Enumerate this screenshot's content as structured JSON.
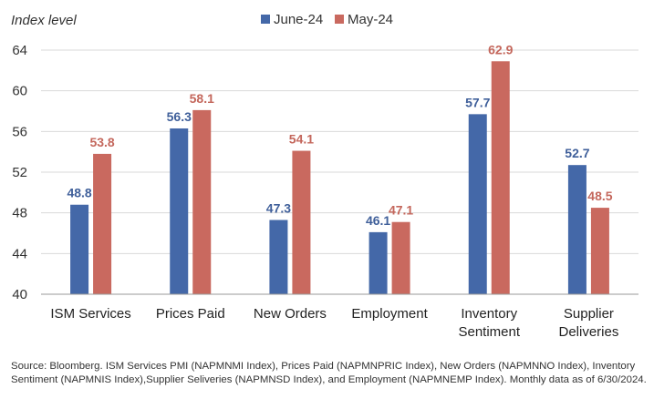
{
  "chart_data": {
    "type": "bar",
    "ylabel": "Index level",
    "ylim": [
      40,
      64
    ],
    "yticks": [
      40,
      44,
      48,
      52,
      56,
      60,
      64
    ],
    "categories": [
      [
        "ISM Services"
      ],
      [
        "Prices Paid"
      ],
      [
        "New Orders"
      ],
      [
        "Employment"
      ],
      [
        "Inventory",
        "Sentiment"
      ],
      [
        "Supplier",
        "Deliveries"
      ]
    ],
    "series": [
      {
        "name": "June-24",
        "color": "#4468a8",
        "label_color": "#3f5f9a",
        "values": [
          48.8,
          56.3,
          47.3,
          46.1,
          57.7,
          52.7
        ]
      },
      {
        "name": "May-24",
        "color": "#c9695f",
        "label_color": "#c4675c",
        "values": [
          53.8,
          58.1,
          54.1,
          47.1,
          62.9,
          48.5
        ]
      }
    ]
  },
  "source_note": "Source: Bloomberg. ISM Services PMI (NAPMNMI Index), Prices Paid (NAPMNPRIC Index), New Orders (NAPMNNO Index), Inventory Sentiment (NAPMNIS Index),Supplier Seliveries (NAPMNSD Index), and Employment (NAPMNEMP Index).   Monthly data as of 6/30/2024."
}
